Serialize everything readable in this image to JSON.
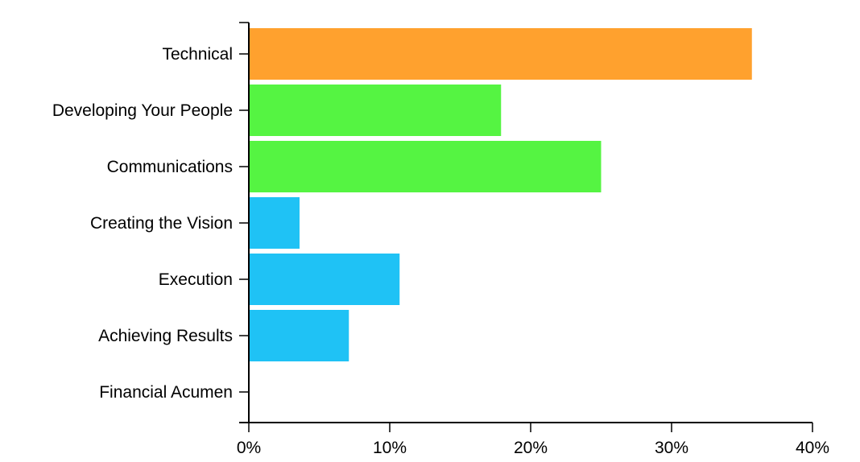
{
  "chart_data": {
    "type": "bar",
    "orientation": "horizontal",
    "categories": [
      "Technical",
      "Developing Your People",
      "Communications",
      "Creating the Vision",
      "Execution",
      "Achieving Results",
      "Financial Acumen"
    ],
    "values": [
      35.7,
      17.9,
      25.0,
      3.6,
      10.7,
      7.1,
      0
    ],
    "colors": [
      "#ffa12e",
      "#55f442",
      "#55f442",
      "#1fc2f5",
      "#1fc2f5",
      "#1fc2f5",
      "#1fc2f5"
    ],
    "xlim": [
      0,
      40
    ],
    "xticks": [
      0,
      10,
      20,
      30,
      40
    ],
    "xtick_labels": [
      "0%",
      "10%",
      "20%",
      "30%",
      "40%"
    ],
    "title": "",
    "xlabel": "",
    "ylabel": "",
    "grid": false
  }
}
